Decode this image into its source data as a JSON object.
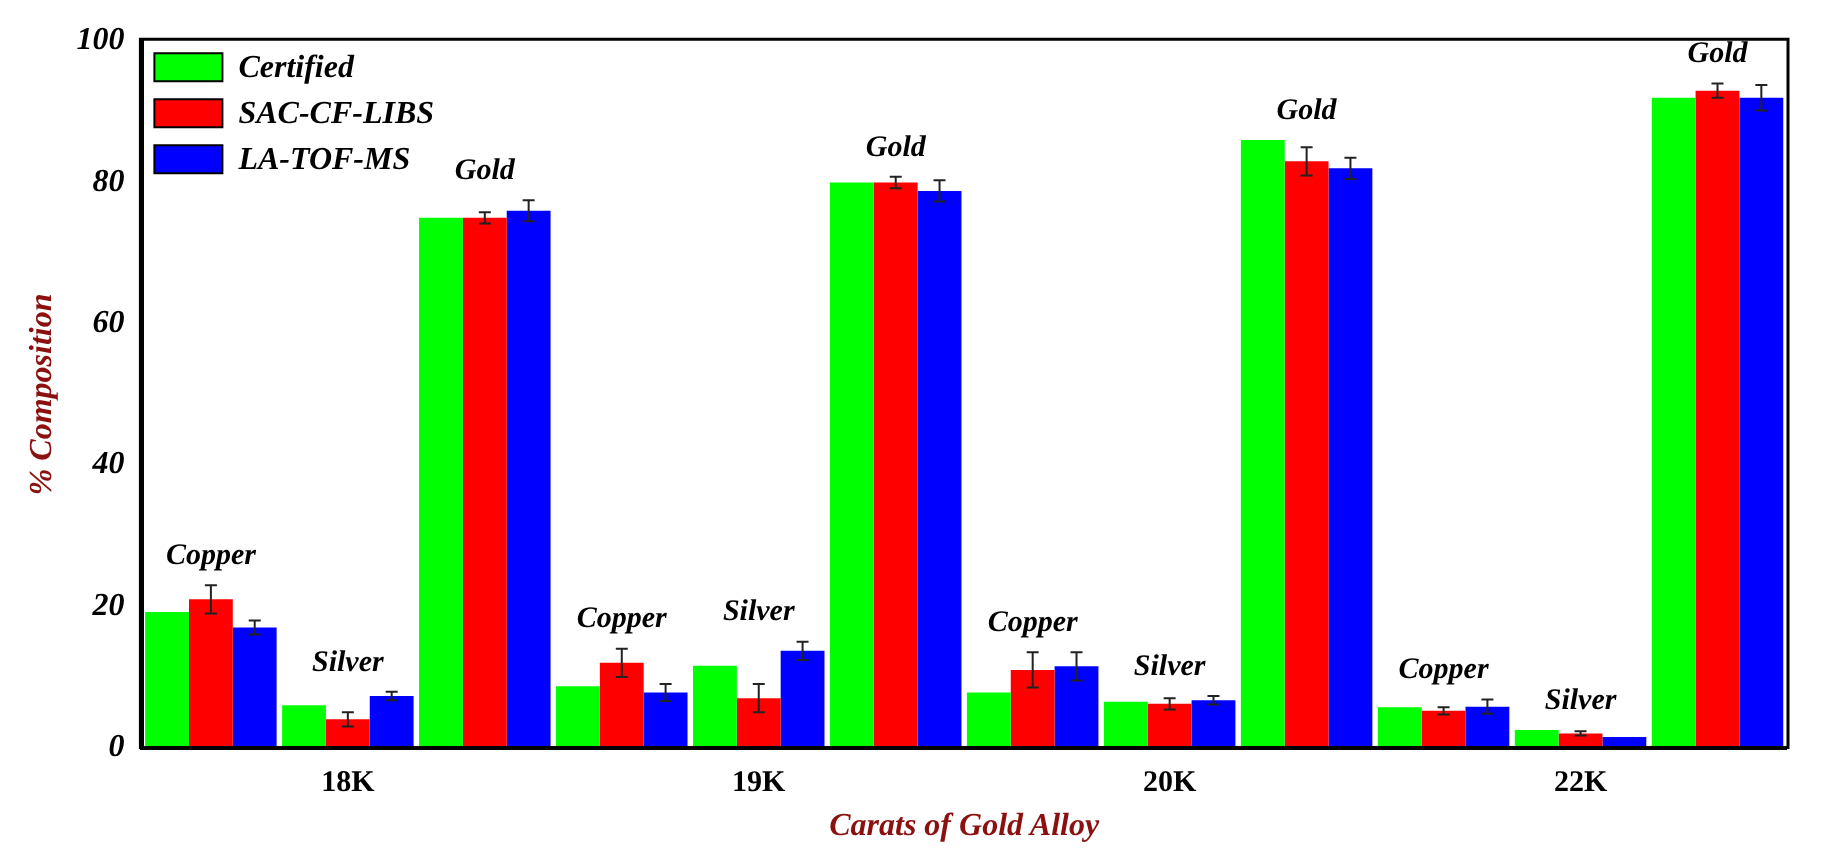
{
  "chart_data": {
    "type": "bar",
    "xlabel": "Carats of Gold Alloy",
    "ylabel": "% Composition",
    "categories": [
      null,
      "18K",
      null,
      null,
      "19K",
      null,
      null,
      "20K",
      null,
      null,
      "22K",
      null
    ],
    "series": [
      {
        "name": "Certified",
        "color": "#00ff00",
        "values": [
          19.2,
          6,
          75,
          8.7,
          11.6,
          80,
          7.8,
          6.5,
          86,
          5.7,
          2.5,
          92
        ]
      },
      {
        "name": "SAC-CF-LIBS",
        "color": "#ff0000",
        "values": [
          21,
          4,
          75,
          12,
          7,
          80,
          11,
          6.2,
          83,
          5.2,
          2,
          93
        ],
        "errors": [
          2,
          1,
          0.8,
          2,
          2,
          0.8,
          2.5,
          0.8,
          2,
          0.5,
          0.3,
          1
        ]
      },
      {
        "name": "LA-TOF-MS",
        "color": "#0000ff",
        "values": [
          17,
          7.3,
          76,
          7.8,
          13.7,
          78.8,
          11.5,
          6.7,
          82,
          5.8,
          1.5,
          92
        ],
        "errors": [
          1,
          0.6,
          1.5,
          1.2,
          1.3,
          1.5,
          2,
          0.6,
          1.5,
          1,
          null,
          1.8
        ]
      }
    ],
    "annotations": [
      "Copper",
      "Silver",
      "Gold",
      "Copper",
      "Silver",
      "Gold",
      "Copper",
      "Silver",
      "Gold",
      "Copper",
      "Silver",
      "Gold"
    ],
    "ylim": [
      0,
      100
    ],
    "yticks": [
      0,
      20,
      40,
      60,
      80,
      100
    ],
    "grid": false,
    "legend": "top left"
  }
}
